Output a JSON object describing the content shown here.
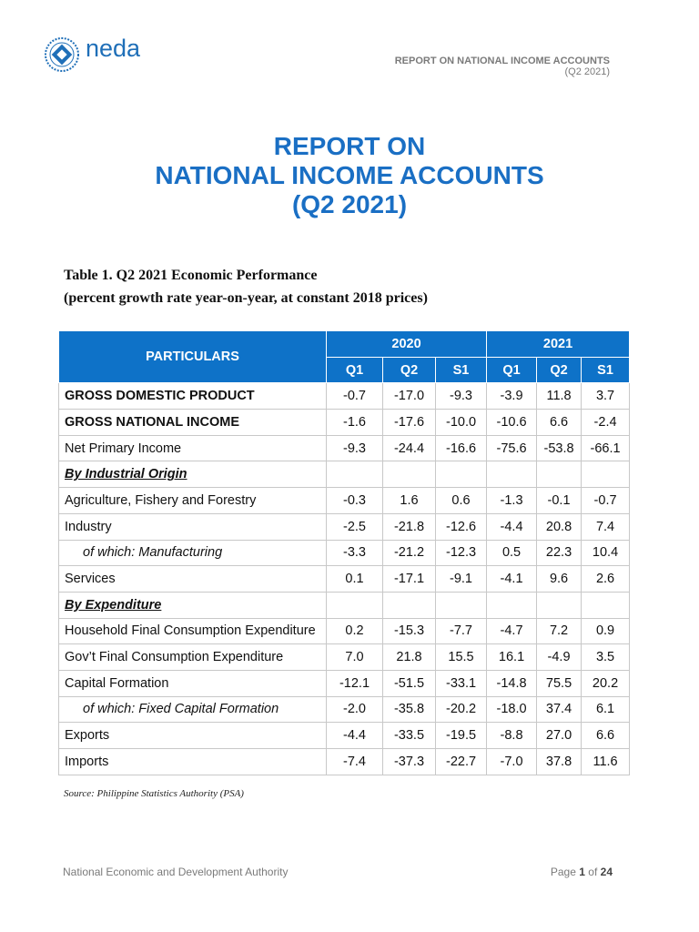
{
  "header": {
    "logo_text": "neda",
    "report_title": "REPORT ON NATIONAL INCOME ACCOUNTS",
    "period": "(Q2 2021)"
  },
  "title": [
    "REPORT ON",
    "NATIONAL INCOME ACCOUNTS",
    "(Q2 2021)"
  ],
  "table": {
    "caption": [
      "Table 1. Q2 2021 Economic Performance",
      "(percent growth rate year-on-year, at constant 2018 prices)"
    ],
    "header": {
      "particulars": "PARTICULARS",
      "years": [
        "2020",
        "2021"
      ],
      "periods": [
        "Q1",
        "Q2",
        "S1",
        "Q1",
        "Q2",
        "S1"
      ]
    },
    "rows": [
      {
        "label": "GROSS DOMESTIC PRODUCT",
        "style": "bold",
        "values": [
          "-0.7",
          "-17.0",
          "-9.3",
          "-3.9",
          "11.8",
          "3.7"
        ]
      },
      {
        "label": "GROSS NATIONAL INCOME",
        "style": "bold",
        "values": [
          "-1.6",
          "-17.6",
          "-10.0",
          "-10.6",
          "6.6",
          "-2.4"
        ]
      },
      {
        "label": "Net Primary Income",
        "style": "plain",
        "values": [
          "-9.3",
          "-24.4",
          "-16.6",
          "-75.6",
          "-53.8",
          "-66.1"
        ]
      },
      {
        "label": "By Industrial Origin",
        "style": "section",
        "values": []
      },
      {
        "label": "Agriculture, Fishery and Forestry",
        "style": "plain",
        "values": [
          "-0.3",
          "1.6",
          "0.6",
          "-1.3",
          "-0.1",
          "-0.7"
        ]
      },
      {
        "label": "Industry",
        "style": "plain",
        "values": [
          "-2.5",
          "-21.8",
          "-12.6",
          "-4.4",
          "20.8",
          "7.4"
        ]
      },
      {
        "label": "of which: Manufacturing",
        "style": "indent",
        "values": [
          "-3.3",
          "-21.2",
          "-12.3",
          "0.5",
          "22.3",
          "10.4"
        ]
      },
      {
        "label": "Services",
        "style": "plain",
        "values": [
          "0.1",
          "-17.1",
          "-9.1",
          "-4.1",
          "9.6",
          "2.6"
        ]
      },
      {
        "label": "By Expenditure",
        "style": "section",
        "values": []
      },
      {
        "label": "Household Final Consumption Expenditure",
        "style": "plain",
        "values": [
          "0.2",
          "-15.3",
          "-7.7",
          "-4.7",
          "7.2",
          "0.9"
        ]
      },
      {
        "label": "Gov’t Final Consumption Expenditure",
        "style": "plain",
        "values": [
          "7.0",
          "21.8",
          "15.5",
          "16.1",
          "-4.9",
          "3.5"
        ]
      },
      {
        "label": "Capital Formation",
        "style": "plain",
        "values": [
          "-12.1",
          "-51.5",
          "-33.1",
          "-14.8",
          "75.5",
          "20.2"
        ]
      },
      {
        "label": "of which: Fixed Capital Formation",
        "style": "indent",
        "values": [
          "-2.0",
          "-35.8",
          "-20.2",
          "-18.0",
          "37.4",
          "6.1"
        ]
      },
      {
        "label": "Exports",
        "style": "plain",
        "values": [
          "-4.4",
          "-33.5",
          "-19.5",
          "-8.8",
          "27.0",
          "6.6"
        ]
      },
      {
        "label": "Imports",
        "style": "plain",
        "values": [
          "-7.4",
          "-37.3",
          "-22.7",
          "-7.0",
          "37.8",
          "11.6"
        ]
      }
    ]
  },
  "source": "Source: Philippine Statistics Authority (PSA)",
  "footer": {
    "organization": "National Economic and Development Authority",
    "page": {
      "label": "Page",
      "current": "1",
      "sep": "of",
      "total": "24"
    }
  }
}
